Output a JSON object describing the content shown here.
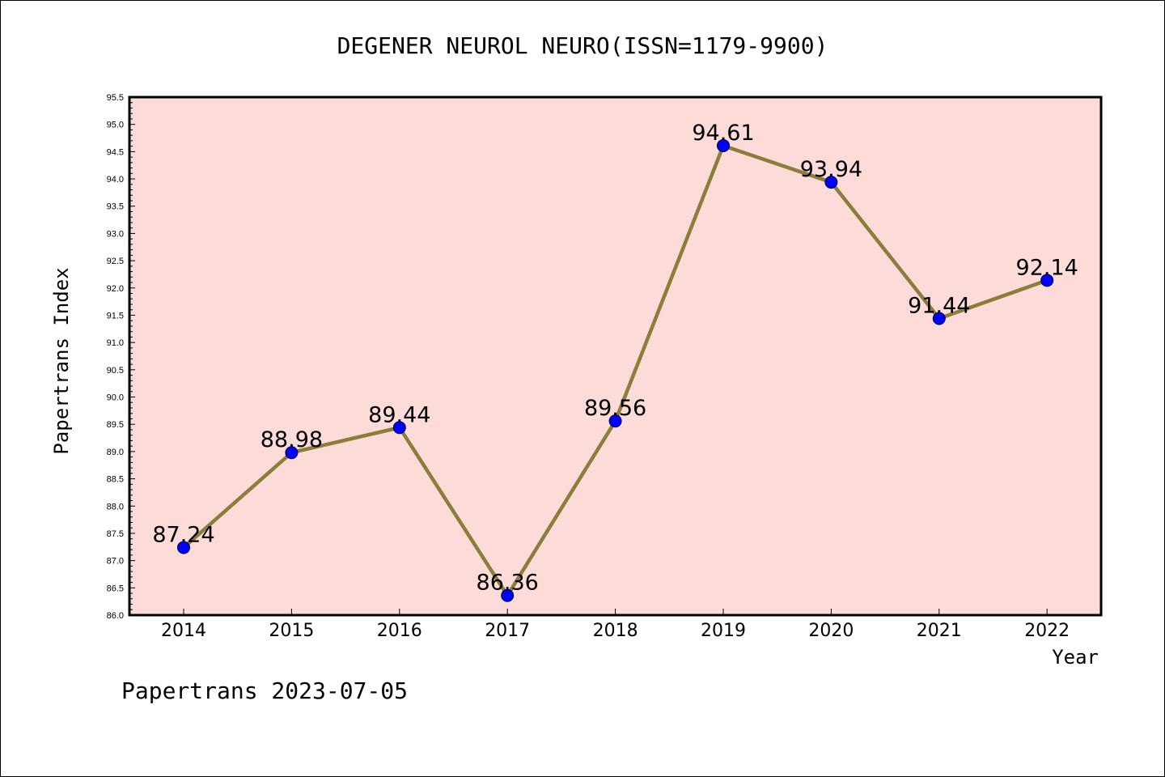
{
  "chart_data": {
    "type": "line",
    "title": "DEGENER NEUROL NEURO(ISSN=1179-9900)",
    "xlabel": "Year",
    "ylabel": "Papertrans Index",
    "categories": [
      "2014",
      "2015",
      "2016",
      "2017",
      "2018",
      "2019",
      "2020",
      "2021",
      "2022"
    ],
    "series": [
      {
        "values": [
          87.24,
          88.98,
          89.44,
          86.36,
          89.56,
          94.61,
          93.94,
          91.44,
          92.14
        ],
        "labels": [
          "87.24",
          "88.98",
          "89.44",
          "86.36",
          "89.56",
          "94.61",
          "93.94",
          "91.44",
          "92.14"
        ]
      }
    ],
    "ylim": [
      86.0,
      95.5
    ],
    "yticks": [
      "86.0",
      "86.5",
      "87.0",
      "87.5",
      "88.0",
      "88.5",
      "89.0",
      "89.5",
      "90.0",
      "90.5",
      "91.0",
      "91.5",
      "92.0",
      "92.5",
      "93.0",
      "93.5",
      "94.0",
      "94.5",
      "95.0",
      "95.5"
    ],
    "grid": false,
    "colors": {
      "plot_background": "#fddbd9",
      "line": "#8b7d3a",
      "marker": "#0000ff"
    }
  },
  "footer": "Papertrans 2023-07-05"
}
